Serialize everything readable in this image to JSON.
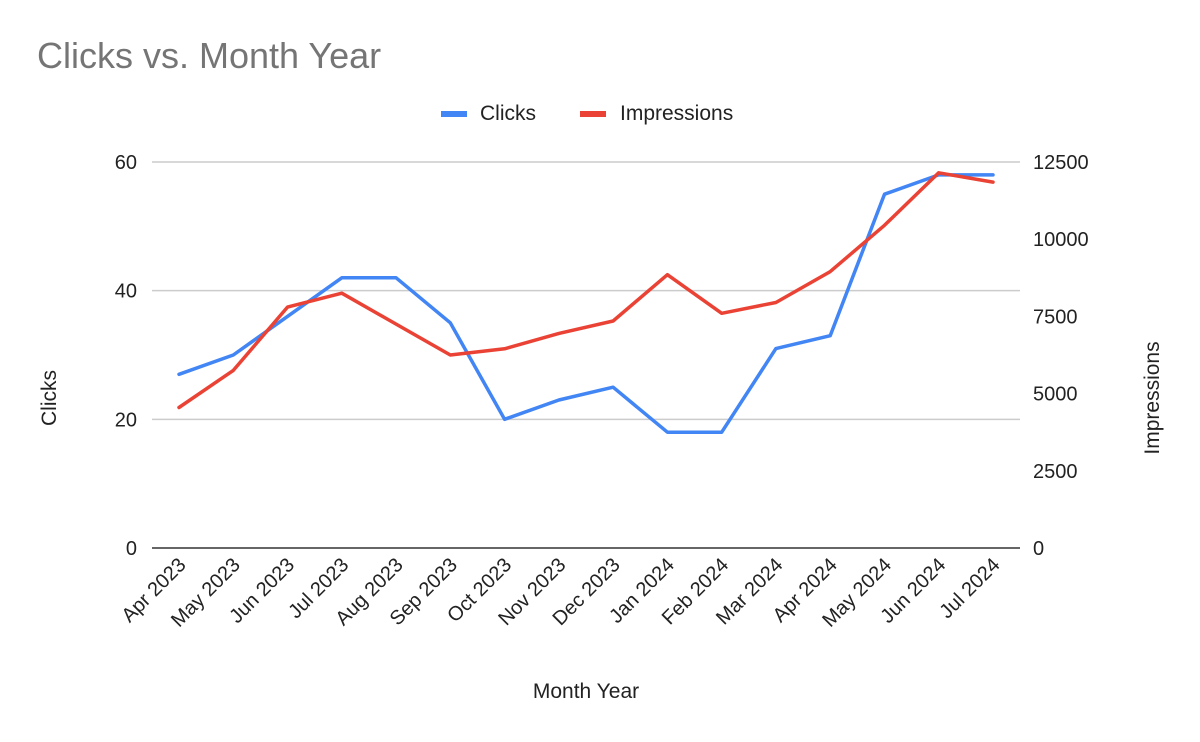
{
  "chart_data": {
    "type": "line",
    "title": "Clicks vs. Month Year",
    "xlabel": "Month Year",
    "ylabel_left": "Clicks",
    "ylabel_right": "Impressions",
    "ylim_left": [
      0,
      60
    ],
    "ylim_right": [
      0,
      12500
    ],
    "yticks_left": [
      "0",
      "20",
      "40",
      "60"
    ],
    "yticks_right": [
      "0",
      "2500",
      "5000",
      "7500",
      "10000",
      "12500"
    ],
    "legend_position": "top-center",
    "grid": true,
    "categories": [
      "Apr 2023",
      "May 2023",
      "Jun 2023",
      "Jul 2023",
      "Aug 2023",
      "Sep 2023",
      "Oct 2023",
      "Nov 2023",
      "Dec 2023",
      "Jan 2024",
      "Feb 2024",
      "Mar 2024",
      "Apr 2024",
      "May 2024",
      "Jun 2024",
      "Jul 2024"
    ],
    "series": [
      {
        "name": "Clicks",
        "axis": "left",
        "color": "#4285f4",
        "values": [
          27,
          30,
          36,
          42,
          42,
          35,
          20,
          23,
          25,
          18,
          18,
          31,
          33,
          55,
          58,
          58
        ]
      },
      {
        "name": "Impressions",
        "axis": "right",
        "color": "#ea4335",
        "values": [
          4550,
          5750,
          7800,
          8250,
          7250,
          6250,
          6450,
          6950,
          7350,
          8850,
          7600,
          7950,
          8950,
          10450,
          12150,
          11850
        ]
      }
    ]
  }
}
